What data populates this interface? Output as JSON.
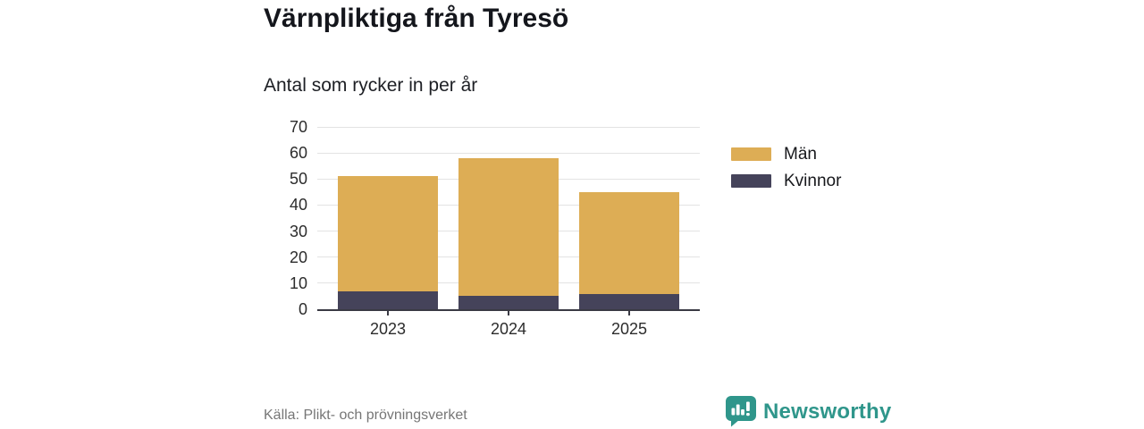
{
  "header": {
    "title": "Värnpliktiga från Tyresö",
    "subtitle": "Antal som rycker in per år"
  },
  "chart_data": {
    "type": "bar",
    "stacked": true,
    "title": "Värnpliktiga från Tyresö",
    "subtitle": "Antal som rycker in per år",
    "categories": [
      "2023",
      "2024",
      "2025"
    ],
    "series": [
      {
        "name": "Män",
        "color": "#ddad55",
        "values": [
          44,
          53,
          39
        ]
      },
      {
        "name": "Kvinnor",
        "color": "#45435a",
        "values": [
          7,
          5,
          6
        ]
      }
    ],
    "totals": [
      51,
      58,
      45
    ],
    "stack_bottom_series": "Kvinnor",
    "xlabel": "",
    "ylabel": "",
    "ylim": [
      0,
      70
    ],
    "yticks": [
      0,
      10,
      20,
      30,
      40,
      50,
      60,
      70
    ],
    "grid": true,
    "legend_position": "right"
  },
  "footer": {
    "source": "Källa: Plikt- och prövningsverket",
    "brand": "Newsworthy"
  },
  "icons": {
    "brand": "newsworthy-speech-bubble-bar-chart-icon"
  },
  "colors": {
    "men": "#ddad55",
    "women": "#45435a",
    "brand_teal": "#2f968b",
    "grid": "#e3e3e3",
    "axis": "#3a3a44",
    "text": "#14161c",
    "muted_text": "#767676"
  }
}
